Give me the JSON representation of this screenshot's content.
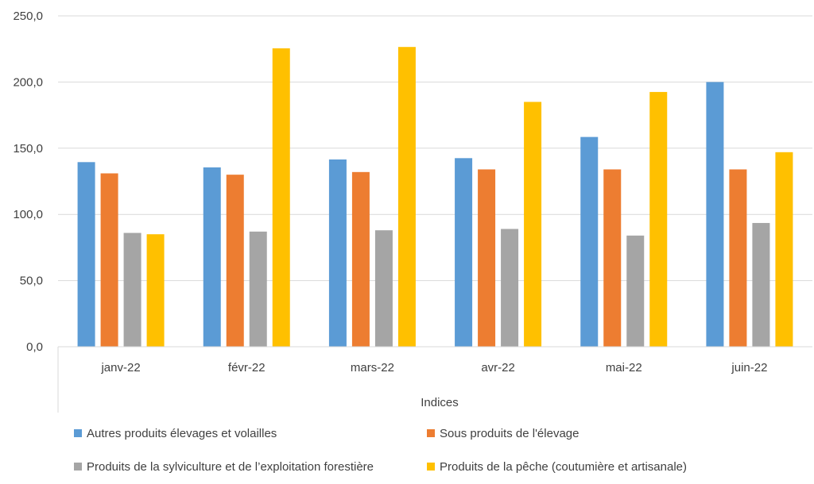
{
  "chart_data": {
    "type": "bar",
    "title": "",
    "xlabel": "Indices",
    "ylabel": "",
    "ylim": [
      0,
      250
    ],
    "yticks": [
      "0,0",
      "50,0",
      "100,0",
      "150,0",
      "200,0",
      "250,0"
    ],
    "ytick_values": [
      0,
      50,
      100,
      150,
      200,
      250
    ],
    "grid": true,
    "legend_position": "bottom",
    "categories": [
      "janv-22",
      "févr-22",
      "mars-22",
      "avr-22",
      "mai-22",
      "juin-22"
    ],
    "series": [
      {
        "name": "Autres produits élevages et volailles",
        "color": "#5B9BD5",
        "values": [
          139.5,
          135.5,
          141.5,
          142.5,
          158.5,
          200.0
        ]
      },
      {
        "name": "Sous produits de l'élevage",
        "color": "#ED7D31",
        "values": [
          131.0,
          130.0,
          132.0,
          134.0,
          134.0,
          134.0
        ]
      },
      {
        "name": "Produits de la sylviculture et de l’exploitation forestière",
        "color": "#A5A5A5",
        "values": [
          86.0,
          87.0,
          88.0,
          89.0,
          84.0,
          93.5
        ]
      },
      {
        "name": "Produits de la pêche (coutumière et artisanale)",
        "color": "#FFC000",
        "values": [
          85.0,
          225.5,
          226.5,
          185.0,
          192.5,
          147.0
        ]
      }
    ]
  }
}
